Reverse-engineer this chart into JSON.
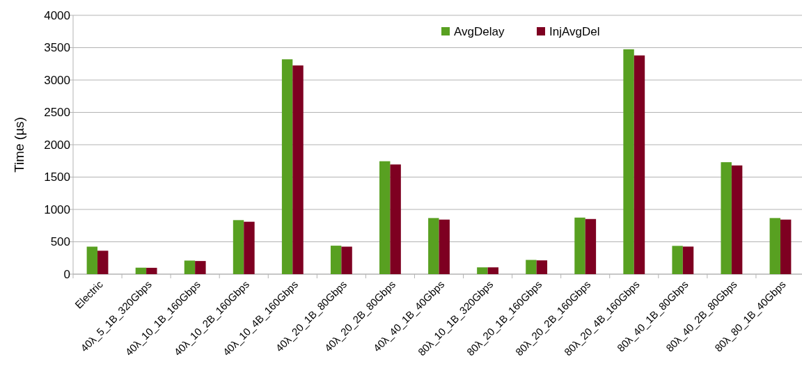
{
  "chart_data": {
    "type": "bar",
    "ylabel": "Time (µs)",
    "categories": [
      "Electric",
      "40λ_5_1B_320Gbps",
      "40λ_10_1B_160Gbps",
      "40λ_10_2B_160Gbps",
      "40λ_10_4B_160Gbps",
      "40λ_20_1B_80Gbps",
      "40λ_20_2B_80Gbps",
      "40λ_40_1B_40Gbps",
      "80λ_10_1B_320Gbps",
      "80λ_20_1B_160Gbps",
      "80λ_20_2B_160Gbps",
      "80λ_20_4B_160Gbps",
      "80λ_40_1B_80Gbps",
      "80λ_40_2B_80Gbps",
      "80λ_80_1B_40Gbps"
    ],
    "series": [
      {
        "name": "AvgDelay",
        "color": "#58a021",
        "values": [
          425,
          100,
          210,
          835,
          3320,
          440,
          1745,
          867,
          105,
          220,
          874,
          3475,
          437,
          1730,
          867
        ]
      },
      {
        "name": "InjAvgDel",
        "color": "#7e0021",
        "values": [
          362,
          98,
          203,
          810,
          3225,
          425,
          1695,
          843,
          105,
          213,
          852,
          3380,
          426,
          1680,
          843
        ]
      }
    ],
    "ylim": [
      0,
      4000
    ],
    "yticks": [
      0,
      500,
      1000,
      1500,
      2000,
      2500,
      3000,
      3500,
      4000
    ],
    "grid": "y",
    "legend": "top"
  }
}
